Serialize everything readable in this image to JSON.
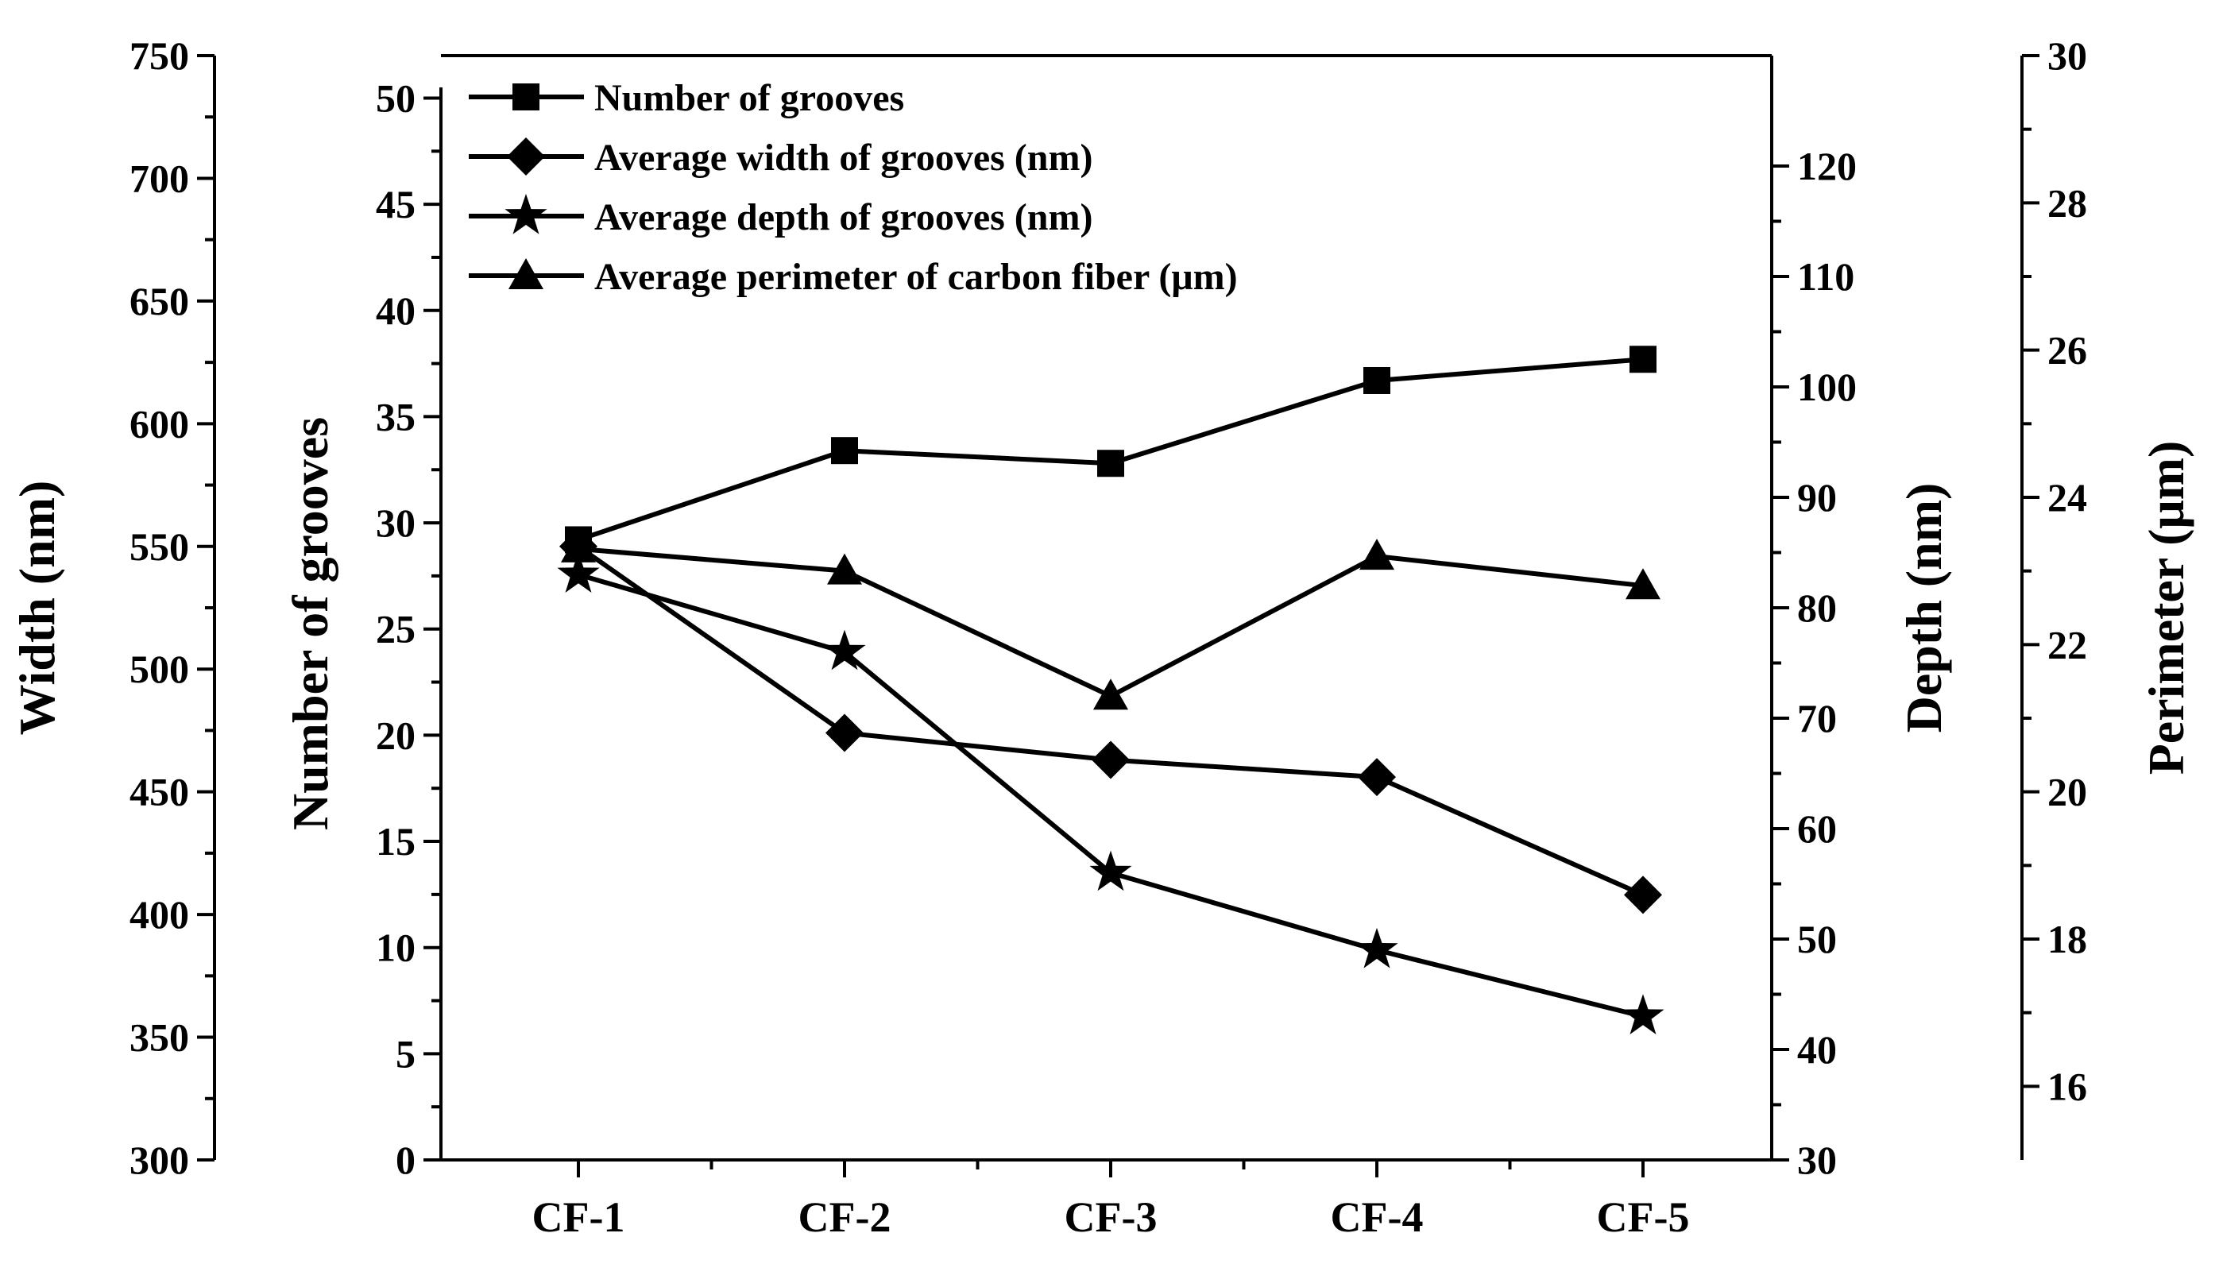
{
  "chart_data": {
    "type": "line",
    "categories": [
      "CF-1",
      "CF-2",
      "CF-3",
      "CF-4",
      "CF-5"
    ],
    "axes": [
      {
        "id": "width",
        "label": "Width (nm)",
        "range": [
          300,
          750
        ],
        "ticks": [
          300,
          350,
          400,
          450,
          500,
          550,
          600,
          650,
          700,
          750
        ],
        "position": "far-left"
      },
      {
        "id": "grooves",
        "label": "Number of grooves",
        "range": [
          0,
          52
        ],
        "ticks": [
          0,
          5,
          10,
          15,
          20,
          25,
          30,
          35,
          40,
          45,
          50
        ],
        "position": "left"
      },
      {
        "id": "depth",
        "label": "Depth (nm)",
        "range": [
          30,
          130
        ],
        "ticks": [
          30,
          40,
          50,
          60,
          70,
          80,
          90,
          100,
          110,
          120
        ],
        "position": "right"
      },
      {
        "id": "perimeter",
        "label": "Perimeter (μm)",
        "range": [
          15,
          30
        ],
        "ticks": [
          16,
          18,
          20,
          22,
          24,
          26,
          28,
          30
        ],
        "position": "far-right"
      }
    ],
    "series": [
      {
        "name": "Number of grooves",
        "axis": "grooves",
        "marker": "square",
        "values": [
          29.2,
          33.4,
          32.8,
          36.7,
          37.7
        ]
      },
      {
        "name": "Average width of grooves (nm)",
        "axis": "width",
        "marker": "diamond",
        "values": [
          550,
          474,
          463,
          456,
          408
        ]
      },
      {
        "name": "Average depth of grooves (nm)",
        "axis": "depth",
        "marker": "star",
        "values": [
          83,
          76,
          56,
          49,
          43
        ]
      },
      {
        "name": "Average perimeter of carbon fiber (μm)",
        "axis": "perimeter",
        "marker": "triangle",
        "values": [
          23.3,
          23.0,
          21.3,
          23.2,
          22.8
        ]
      }
    ],
    "legend_position": "top-left"
  }
}
